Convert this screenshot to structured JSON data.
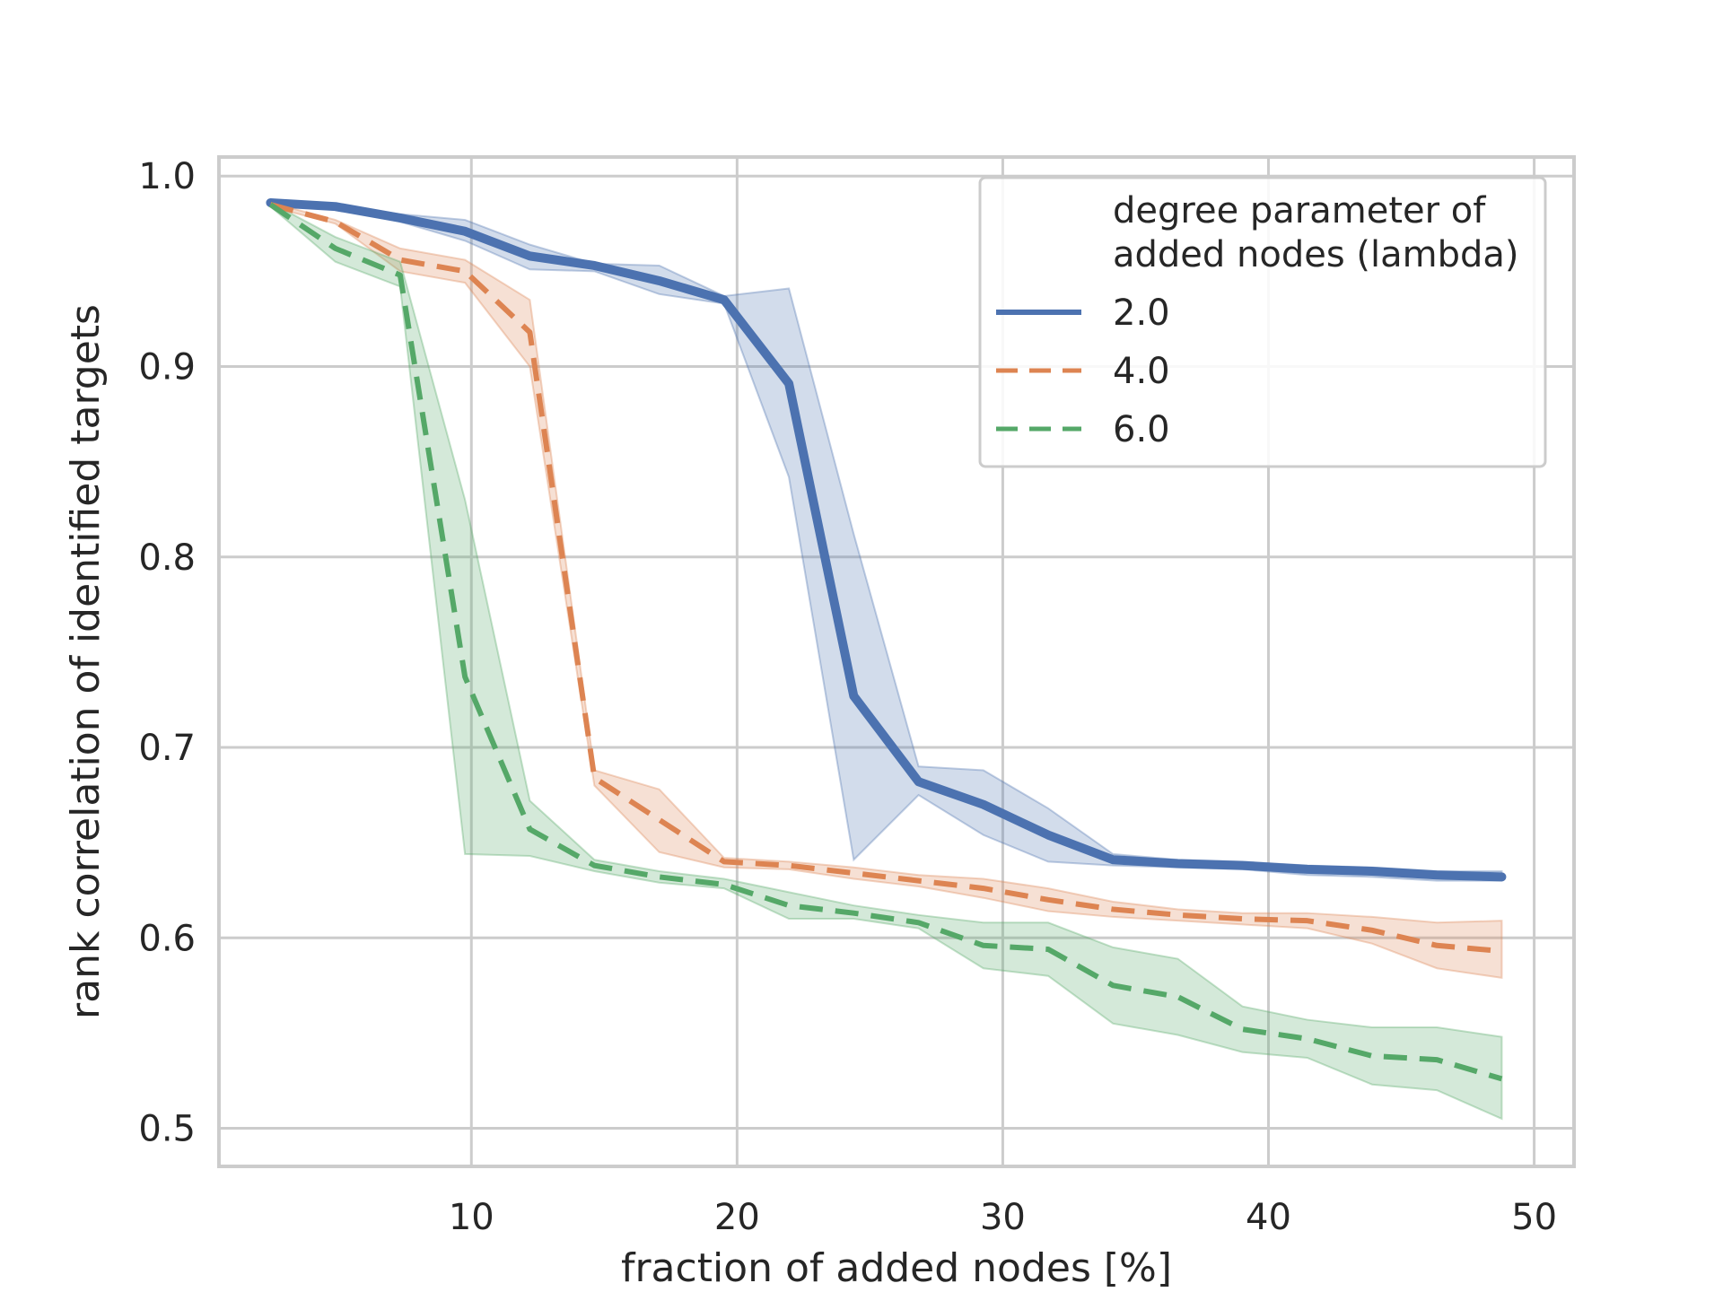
{
  "chart_data": {
    "type": "line",
    "title": "",
    "xlabel": "fraction of added nodes [%]",
    "ylabel": "rank correlation of identified targets",
    "xlim": [
      0.5,
      51.5
    ],
    "ylim": [
      0.48,
      1.01
    ],
    "xticks": [
      10,
      20,
      30,
      40,
      50
    ],
    "yticks": [
      0.5,
      0.6,
      0.7,
      0.8,
      0.9,
      1.0
    ],
    "xtick_labels": [
      "10",
      "20",
      "30",
      "40",
      "50"
    ],
    "ytick_labels": [
      "0.5",
      "0.6",
      "0.7",
      "0.8",
      "0.9",
      "1.0"
    ],
    "grid": true,
    "legend": {
      "title": "degree parameter of added nodes (lambda)",
      "title_lines": [
        "degree parameter of",
        "added nodes (lambda)"
      ],
      "placement": "upper-right"
    },
    "x": [
      2.44,
      4.88,
      7.32,
      9.76,
      12.2,
      14.63,
      17.07,
      19.51,
      21.95,
      24.39,
      26.83,
      29.27,
      31.71,
      34.15,
      36.59,
      39.02,
      41.46,
      43.9,
      46.34,
      48.78
    ],
    "series": [
      {
        "name": "2.0",
        "color": "#4c72b0",
        "dash": "solid",
        "values": [
          0.986,
          0.984,
          0.978,
          0.971,
          0.958,
          0.953,
          0.945,
          0.935,
          0.891,
          0.727,
          0.682,
          0.67,
          0.654,
          0.641,
          0.639,
          0.638,
          0.636,
          0.635,
          0.633,
          0.632
        ],
        "lower": [
          0.985,
          0.983,
          0.976,
          0.966,
          0.951,
          0.95,
          0.938,
          0.933,
          0.842,
          0.641,
          0.675,
          0.654,
          0.64,
          0.638,
          0.637,
          0.636,
          0.633,
          0.632,
          0.63,
          0.63
        ],
        "upper": [
          0.987,
          0.985,
          0.98,
          0.977,
          0.964,
          0.954,
          0.953,
          0.937,
          0.941,
          0.812,
          0.69,
          0.688,
          0.668,
          0.644,
          0.641,
          0.64,
          0.638,
          0.637,
          0.635,
          0.635
        ]
      },
      {
        "name": "4.0",
        "color": "#dd8452",
        "dash": "dashed",
        "values": [
          0.985,
          0.976,
          0.956,
          0.95,
          0.918,
          0.684,
          0.662,
          0.64,
          0.638,
          0.634,
          0.63,
          0.626,
          0.62,
          0.615,
          0.612,
          0.61,
          0.609,
          0.604,
          0.596,
          0.593
        ],
        "lower": [
          0.984,
          0.975,
          0.95,
          0.944,
          0.9,
          0.68,
          0.645,
          0.637,
          0.636,
          0.631,
          0.627,
          0.621,
          0.614,
          0.611,
          0.609,
          0.607,
          0.605,
          0.597,
          0.584,
          0.579
        ],
        "upper": [
          0.986,
          0.977,
          0.962,
          0.956,
          0.935,
          0.688,
          0.678,
          0.642,
          0.64,
          0.637,
          0.633,
          0.631,
          0.626,
          0.619,
          0.615,
          0.613,
          0.613,
          0.611,
          0.608,
          0.609
        ]
      },
      {
        "name": "6.0",
        "color": "#55a868",
        "dash": "dashed",
        "values": [
          0.985,
          0.962,
          0.948,
          0.737,
          0.657,
          0.638,
          0.632,
          0.628,
          0.617,
          0.613,
          0.608,
          0.596,
          0.594,
          0.575,
          0.569,
          0.552,
          0.547,
          0.538,
          0.536,
          0.526
        ],
        "lower": [
          0.984,
          0.955,
          0.942,
          0.644,
          0.643,
          0.635,
          0.629,
          0.626,
          0.61,
          0.61,
          0.605,
          0.584,
          0.58,
          0.555,
          0.549,
          0.54,
          0.537,
          0.523,
          0.52,
          0.505
        ],
        "upper": [
          0.986,
          0.968,
          0.955,
          0.83,
          0.672,
          0.641,
          0.635,
          0.631,
          0.624,
          0.617,
          0.612,
          0.608,
          0.608,
          0.595,
          0.589,
          0.564,
          0.557,
          0.553,
          0.553,
          0.548
        ]
      }
    ]
  }
}
